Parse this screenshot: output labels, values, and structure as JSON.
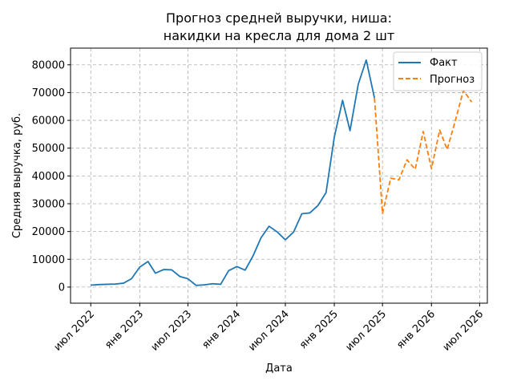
{
  "chart_data": {
    "type": "line",
    "title_lines": [
      "Прогноз средней выручки, ниша:",
      "накидки на кресла для дома 2 шт"
    ],
    "xlabel": "Дата",
    "ylabel": "Средняя выручка, руб.",
    "x_axis_type": "date",
    "xlim": [
      "2022-04-16",
      "2026-07-30"
    ],
    "ylim": [
      -5800,
      86000
    ],
    "y_ticks": [
      0,
      10000,
      20000,
      30000,
      40000,
      50000,
      60000,
      70000,
      80000
    ],
    "x_ticks": [
      {
        "date": "2022-07-01",
        "label": "июл 2022"
      },
      {
        "date": "2023-01-01",
        "label": "янв 2023"
      },
      {
        "date": "2023-07-01",
        "label": "июл 2023"
      },
      {
        "date": "2024-01-01",
        "label": "янв 2024"
      },
      {
        "date": "2024-07-01",
        "label": "июл 2024"
      },
      {
        "date": "2025-01-01",
        "label": "янв 2025"
      },
      {
        "date": "2025-07-01",
        "label": "июл 2025"
      },
      {
        "date": "2026-01-01",
        "label": "янв 2026"
      },
      {
        "date": "2026-07-01",
        "label": "июл 2026"
      }
    ],
    "grid": true,
    "legend_position": "top-right",
    "series": [
      {
        "name": "Факт",
        "color": "#1f77b4",
        "style": "solid",
        "points": [
          {
            "x": "2022-07-01",
            "y": 700
          },
          {
            "x": "2022-08-01",
            "y": 900
          },
          {
            "x": "2022-09-01",
            "y": 1000
          },
          {
            "x": "2022-10-01",
            "y": 1100
          },
          {
            "x": "2022-11-01",
            "y": 1400
          },
          {
            "x": "2022-12-01",
            "y": 3000
          },
          {
            "x": "2023-01-01",
            "y": 7200
          },
          {
            "x": "2023-02-01",
            "y": 9200
          },
          {
            "x": "2023-03-01",
            "y": 5000
          },
          {
            "x": "2023-04-01",
            "y": 6300
          },
          {
            "x": "2023-05-01",
            "y": 6200
          },
          {
            "x": "2023-06-01",
            "y": 3800
          },
          {
            "x": "2023-07-01",
            "y": 3000
          },
          {
            "x": "2023-08-01",
            "y": 600
          },
          {
            "x": "2023-09-01",
            "y": 800
          },
          {
            "x": "2023-10-01",
            "y": 1200
          },
          {
            "x": "2023-11-01",
            "y": 1000
          },
          {
            "x": "2023-12-01",
            "y": 5900
          },
          {
            "x": "2024-01-01",
            "y": 7400
          },
          {
            "x": "2024-02-01",
            "y": 6100
          },
          {
            "x": "2024-03-01",
            "y": 11100
          },
          {
            "x": "2024-04-01",
            "y": 17800
          },
          {
            "x": "2024-05-01",
            "y": 21900
          },
          {
            "x": "2024-06-01",
            "y": 19800
          },
          {
            "x": "2024-07-01",
            "y": 17000
          },
          {
            "x": "2024-08-01",
            "y": 19800
          },
          {
            "x": "2024-09-01",
            "y": 26400
          },
          {
            "x": "2024-10-01",
            "y": 26700
          },
          {
            "x": "2024-11-01",
            "y": 29400
          },
          {
            "x": "2024-12-01",
            "y": 34000
          },
          {
            "x": "2025-01-01",
            "y": 54000
          },
          {
            "x": "2025-02-01",
            "y": 67200
          },
          {
            "x": "2025-03-01",
            "y": 56300
          },
          {
            "x": "2025-04-01",
            "y": 73000
          },
          {
            "x": "2025-05-01",
            "y": 81700
          },
          {
            "x": "2025-06-01",
            "y": 68000
          }
        ]
      },
      {
        "name": "Прогноз",
        "color": "#ff7f0e",
        "style": "dashed",
        "points": [
          {
            "x": "2025-06-01",
            "y": 68000
          },
          {
            "x": "2025-07-01",
            "y": 26500
          },
          {
            "x": "2025-08-01",
            "y": 39200
          },
          {
            "x": "2025-09-01",
            "y": 38600
          },
          {
            "x": "2025-10-01",
            "y": 45800
          },
          {
            "x": "2025-11-01",
            "y": 42400
          },
          {
            "x": "2025-12-01",
            "y": 56000
          },
          {
            "x": "2026-01-01",
            "y": 42600
          },
          {
            "x": "2026-02-01",
            "y": 56500
          },
          {
            "x": "2026-03-01",
            "y": 49500
          },
          {
            "x": "2026-04-01",
            "y": 60000
          },
          {
            "x": "2026-05-01",
            "y": 70800
          },
          {
            "x": "2026-06-01",
            "y": 66600
          }
        ]
      }
    ]
  }
}
